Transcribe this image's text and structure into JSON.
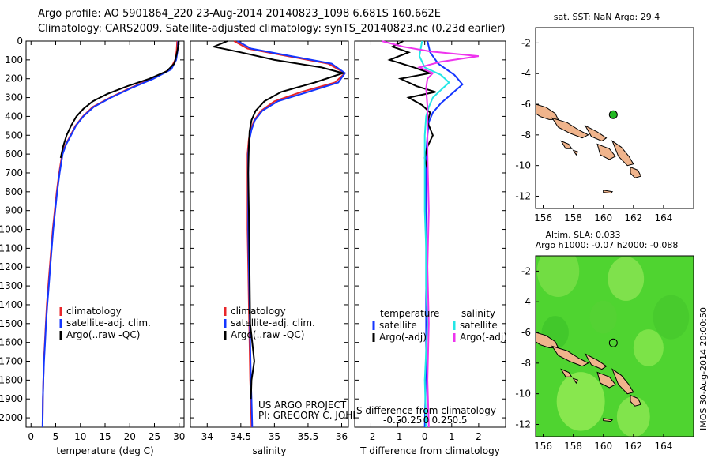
{
  "header": {
    "line1": "Argo profile: AO 5901864_220 23-Aug-2014 20140823_1098 6.681S 160.662E",
    "line2": "Climatology: CARS2009. Satellite-adjusted climatology: synTS_20140823.nc (0.23d earlier)"
  },
  "colors": {
    "climatology": "#e8262a",
    "satellite": "#1436ff",
    "argo": "#000000",
    "sal_sat": "#22e6e6",
    "sal_argo": "#ee33ee",
    "land": "#f0b48c",
    "sla_green": "#4fd430",
    "float": "#22b722"
  },
  "chart_data": [
    {
      "type": "line",
      "id": "temperature",
      "xlabel": "temperature (deg C)",
      "xlim": [
        -1,
        31
      ],
      "ylim": [
        0,
        2050
      ],
      "yaxis_reversed": true,
      "xticks": [
        0,
        5,
        10,
        15,
        20,
        25,
        30
      ],
      "yticks": [
        0,
        100,
        200,
        300,
        400,
        500,
        600,
        700,
        800,
        900,
        1000,
        1100,
        1200,
        1300,
        1400,
        1500,
        1600,
        1700,
        1800,
        1900,
        2000
      ],
      "legend": [
        "climatology",
        "satellite-adj. clim.",
        "Argo(..raw -QC)"
      ],
      "series": [
        {
          "name": "climatology",
          "color_key": "climatology",
          "x": [
            29.6,
            29.5,
            29.2,
            28.2,
            24.5,
            20,
            16,
            12.5,
            10.5,
            9,
            8,
            7,
            6.3,
            5.7,
            5.2,
            4.8,
            4.4,
            4.1,
            3.8,
            3.5,
            3.2,
            3.0,
            2.8,
            2.6,
            2.5,
            2.4,
            2.35
          ],
          "y": [
            0,
            50,
            100,
            150,
            200,
            250,
            300,
            350,
            400,
            450,
            500,
            550,
            600,
            700,
            800,
            900,
            1000,
            1100,
            1200,
            1300,
            1400,
            1500,
            1600,
            1700,
            1800,
            1900,
            2050
          ]
        },
        {
          "name": "satellite-adj. clim.",
          "color_key": "satellite",
          "x": [
            29.8,
            29.7,
            29.4,
            28.4,
            24.8,
            20.3,
            16.2,
            12.7,
            10.6,
            9.1,
            8.1,
            7.1,
            6.4,
            5.8,
            5.3,
            4.9,
            4.5,
            4.2,
            3.9,
            3.6,
            3.3,
            3.05,
            2.85,
            2.65,
            2.5,
            2.4,
            2.35
          ],
          "y": [
            0,
            50,
            100,
            150,
            200,
            250,
            300,
            350,
            400,
            450,
            500,
            550,
            600,
            700,
            800,
            900,
            1000,
            1100,
            1200,
            1300,
            1400,
            1500,
            1600,
            1700,
            1800,
            1900,
            2050
          ]
        },
        {
          "name": "Argo(..raw -QC)",
          "color_key": "argo",
          "x": [
            29.9,
            29.8,
            29.5,
            29.0,
            27.5,
            24,
            19.5,
            15.5,
            12.5,
            10.6,
            9.2,
            8.1,
            7.2,
            6.5,
            6.0
          ],
          "y": [
            0,
            30,
            70,
            120,
            160,
            200,
            240,
            280,
            320,
            360,
            400,
            450,
            500,
            560,
            620
          ]
        }
      ]
    },
    {
      "type": "line",
      "id": "salinity",
      "xlabel": "salinity",
      "xlim": [
        33.75,
        36.1
      ],
      "ylim": [
        0,
        2050
      ],
      "yaxis_reversed": true,
      "xticks": [
        34,
        34.5,
        35,
        35.5,
        36
      ],
      "legend": [
        "climatology",
        "satellite-adj. clim.",
        "Argo(..raw -QC)"
      ],
      "annotations": [
        "US ARGO PROJECT",
        "PI: GREGORY C. JOHNSON"
      ],
      "series": [
        {
          "name": "climatology",
          "color_key": "climatology",
          "x": [
            34.4,
            34.6,
            35.2,
            35.8,
            36.05,
            35.9,
            35.4,
            35.0,
            34.8,
            34.7,
            34.65,
            34.62,
            34.6,
            34.6,
            34.6,
            34.61,
            34.62,
            34.63,
            34.64,
            34.65,
            34.66
          ],
          "y": [
            0,
            40,
            80,
            120,
            170,
            220,
            270,
            320,
            370,
            420,
            470,
            520,
            600,
            800,
            1000,
            1200,
            1400,
            1600,
            1800,
            1900,
            2050
          ]
        },
        {
          "name": "satellite-adj. clim.",
          "color_key": "satellite",
          "x": [
            34.45,
            34.65,
            35.25,
            35.85,
            36.05,
            35.95,
            35.5,
            35.05,
            34.82,
            34.71,
            34.66,
            34.63,
            34.61,
            34.61,
            34.61,
            34.62,
            34.63,
            34.64,
            34.65,
            34.66,
            34.67
          ],
          "y": [
            0,
            40,
            80,
            120,
            170,
            220,
            270,
            320,
            370,
            420,
            470,
            520,
            600,
            800,
            1000,
            1200,
            1400,
            1600,
            1800,
            1900,
            2050
          ]
        },
        {
          "name": "Argo(..raw -QC)",
          "color_key": "argo",
          "x": [
            34.3,
            34.1,
            34.5,
            35.0,
            35.7,
            36.02,
            35.6,
            35.1,
            34.85,
            34.72,
            34.66,
            34.63,
            34.62,
            34.61,
            34.62,
            34.63,
            34.64,
            34.7,
            34.66,
            34.65
          ],
          "y": [
            0,
            30,
            60,
            100,
            140,
            170,
            220,
            270,
            320,
            370,
            420,
            480,
            560,
            700,
            900,
            1200,
            1500,
            1700,
            1800,
            1900
          ]
        }
      ]
    },
    {
      "type": "line",
      "id": "difference",
      "xlabel": "T difference from climatology",
      "top_xlabel": "S difference from climatology",
      "xlim": [
        -2.6,
        3.0
      ],
      "ylim": [
        0,
        2050
      ],
      "yaxis_reversed": true,
      "xticks": [
        -2,
        -1,
        0,
        1,
        2
      ],
      "top_xticks": [
        "-0.5",
        "-0.25",
        "0",
        "0.25",
        "0.5"
      ],
      "legend_headers": [
        "temperature",
        "salinity"
      ],
      "legend": [
        "satellite",
        "Argo(-adj)",
        "satellite",
        "Argo(-adj)"
      ],
      "series": [
        {
          "name": "temperature satellite",
          "color_key": "satellite",
          "x": [
            0.1,
            0.2,
            0.5,
            1.1,
            1.4,
            1.0,
            0.6,
            0.3,
            0.15,
            0.1,
            0.05,
            0.05,
            0.05,
            0.05,
            0.05,
            0.05,
            0.0
          ],
          "y": [
            0,
            60,
            120,
            180,
            230,
            280,
            330,
            380,
            430,
            500,
            600,
            800,
            1000,
            1200,
            1400,
            1700,
            2050
          ]
        },
        {
          "name": "temperature Argo(-adj)",
          "color_key": "argo",
          "x": [
            -0.8,
            -1.2,
            -0.6,
            -1.3,
            -0.4,
            0.2,
            -0.9,
            -0.3,
            0.4,
            -0.6,
            -0.1,
            0.2,
            0.1,
            0.3,
            0.1,
            0.0,
            0.1
          ],
          "y": [
            0,
            30,
            60,
            100,
            140,
            170,
            200,
            240,
            270,
            300,
            340,
            380,
            430,
            500,
            560,
            620,
            680
          ]
        },
        {
          "name": "salinity satellite",
          "color_key": "sal_sat",
          "x": [
            -0.1,
            -0.2,
            0.0,
            0.6,
            0.9,
            0.6,
            0.3,
            0.15,
            0.05,
            0.0,
            0.0,
            0.0,
            0.05,
            0.05,
            0.1,
            0.0,
            0.05
          ],
          "y": [
            0,
            80,
            140,
            180,
            220,
            260,
            300,
            350,
            400,
            500,
            700,
            900,
            1100,
            1300,
            1500,
            1800,
            2050
          ]
        },
        {
          "name": "salinity Argo(-adj)",
          "color_key": "sal_argo",
          "x": [
            -1.6,
            -0.8,
            0.2,
            2.0,
            0.6,
            -0.2,
            0.3,
            0.1,
            0.05,
            0.1,
            0.1,
            0.15,
            0.1,
            0.15,
            0.1,
            0.15
          ],
          "y": [
            0,
            30,
            55,
            80,
            110,
            140,
            170,
            200,
            250,
            350,
            600,
            900,
            1200,
            1500,
            1800,
            2050
          ]
        }
      ]
    }
  ],
  "maps": [
    {
      "id": "sst-map",
      "title": "sat. SST: NaN Argo: 29.4",
      "xlim": [
        155.5,
        166
      ],
      "ylim": [
        -12.8,
        -1
      ],
      "xticks": [
        156,
        158,
        160,
        162,
        164
      ],
      "yticks": [
        -2,
        -4,
        -6,
        -8,
        -10,
        -12
      ],
      "background": "none",
      "float_position": [
        160.662,
        -6.681
      ]
    },
    {
      "id": "sla-map",
      "title_line1": "Altim. SLA: 0.033",
      "title_line2": "Argo h1000: -0.07 h2000: -0.088",
      "xlim": [
        155.5,
        166
      ],
      "ylim": [
        -12.8,
        -1
      ],
      "xticks": [
        156,
        158,
        160,
        162,
        164
      ],
      "yticks": [
        -2,
        -4,
        -6,
        -8,
        -10,
        -12
      ],
      "background": "sla",
      "float_position": [
        160.662,
        -6.681
      ]
    }
  ],
  "side_label": "IMOS 30-Aug-2014 20:00:50"
}
